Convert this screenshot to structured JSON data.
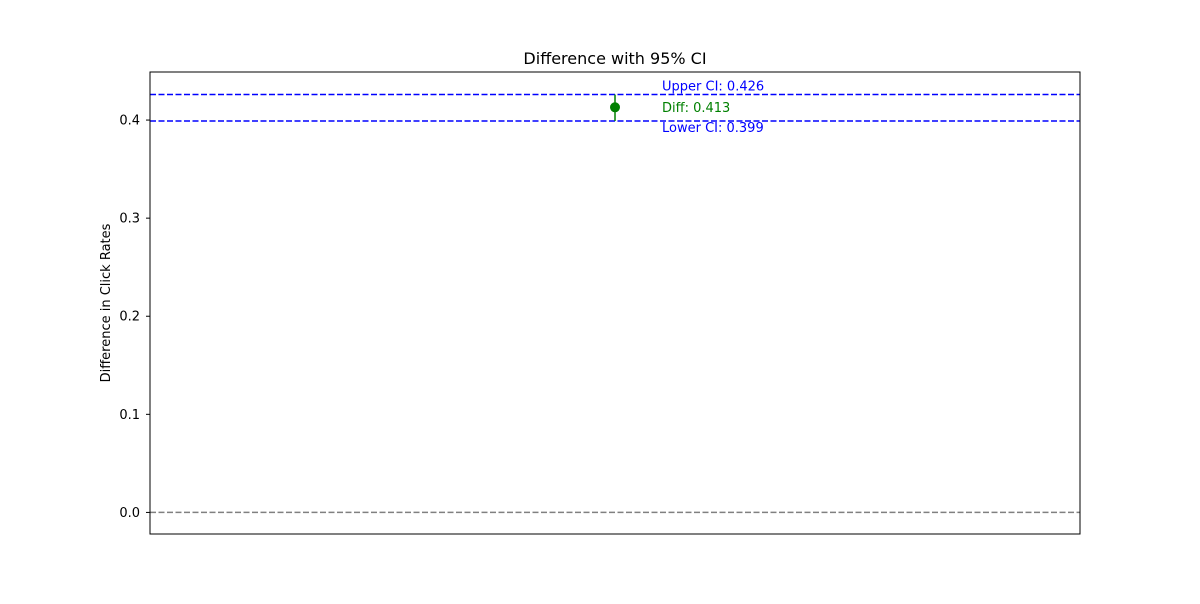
{
  "chart_data": {
    "type": "errorbar",
    "title": "Difference with 95% CI",
    "xlabel": "",
    "ylabel": "Difference in Click Rates",
    "ylim": [
      -0.022,
      0.449
    ],
    "yticks": [
      0.0,
      0.1,
      0.2,
      0.3,
      0.4
    ],
    "ytick_labels": [
      "0.0",
      "0.1",
      "0.2",
      "0.3",
      "0.4"
    ],
    "xticks_visible": false,
    "grid": false,
    "point": {
      "diff": 0.413,
      "lower": 0.399,
      "upper": 0.426,
      "color": "#008000"
    },
    "reference_lines": [
      {
        "name": "upper-ci",
        "y": 0.426,
        "style": "dashed",
        "color": "#0000ff"
      },
      {
        "name": "lower-ci",
        "y": 0.399,
        "style": "dashed",
        "color": "#0000ff"
      },
      {
        "name": "zero",
        "y": 0.0,
        "style": "dashed",
        "color": "#808080"
      }
    ],
    "annotations": [
      {
        "name": "upper-ci-annotation",
        "text": "Upper CI: 0.426",
        "color": "#0000ff"
      },
      {
        "name": "diff-annotation",
        "text": "Diff: 0.413",
        "color": "#008000"
      },
      {
        "name": "lower-ci-annotation",
        "text": "Lower CI: 0.399",
        "color": "#0000ff"
      }
    ]
  }
}
